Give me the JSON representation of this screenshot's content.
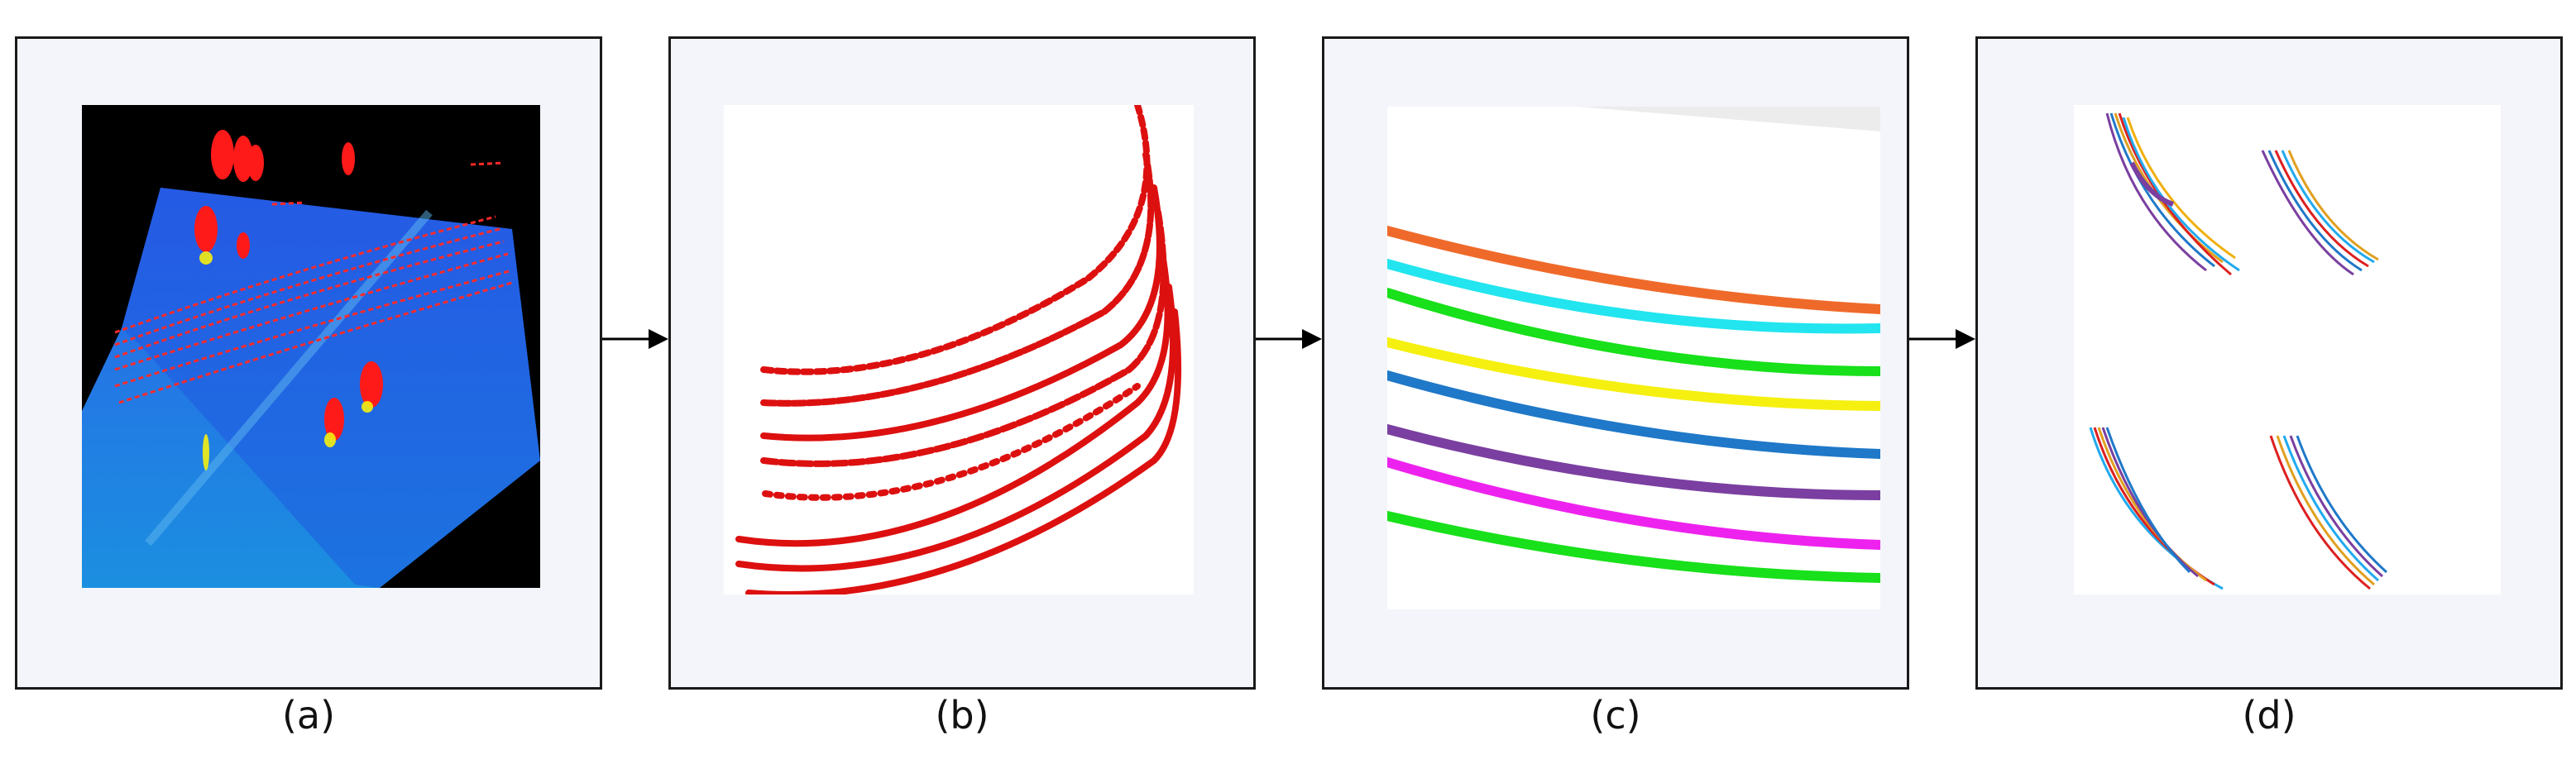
{
  "panels": [
    {
      "caption": "(a)"
    },
    {
      "caption": "(b)"
    },
    {
      "caption": "(c)"
    },
    {
      "caption": "(d)"
    }
  ],
  "colors": {
    "panel_bg": "#f4f5fa",
    "border": "#1a1a1a",
    "pointcloud_ground": "#1f5fe0",
    "pointcloud_bg": "#000000",
    "powerline_red": "#e01010",
    "cluster_colors": [
      "#ef6a2a",
      "#22e5ef",
      "#18e01a",
      "#f5f010",
      "#1f78c8",
      "#7a3fa0",
      "#ee22ee",
      "#18e01a"
    ]
  }
}
